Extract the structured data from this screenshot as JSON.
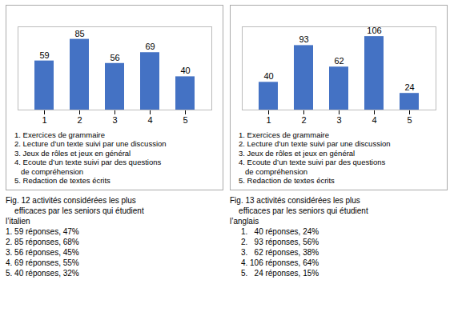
{
  "chart_data": [
    {
      "type": "bar",
      "categories": [
        "1",
        "2",
        "3",
        "4",
        "5"
      ],
      "values": [
        59,
        85,
        56,
        69,
        40
      ],
      "color": "#4472C4",
      "ylim": [
        0,
        100
      ],
      "data_labels": true,
      "tick_labels": "x",
      "annotations": [
        "1. Exercices de grammaire",
        "2. Lecture d’un texte suivi par une discussion",
        "3. Jeux de rôles et jeux en général",
        "4. Ecoute d’un texte suivi par des questions",
        "   de compréhension",
        "5. Redaction de textes écrits"
      ],
      "caption": "Fig. 12 activités considérées les plus\n    efficaces par les seniors qui étudient\nl’italien\n1. 59 réponses, 47%\n2. 85 réponses, 68%\n3. 56 réponses, 45%\n4. 69 réponses, 55%\n5. 40 réponses, 32%"
    },
    {
      "type": "bar",
      "categories": [
        "1",
        "2",
        "3",
        "4",
        "5"
      ],
      "values": [
        40,
        93,
        62,
        106,
        24
      ],
      "color": "#4472C4",
      "ylim": [
        0,
        120
      ],
      "data_labels": true,
      "tick_labels": "x",
      "annotations": [
        "1. Exercices de grammaire",
        "2. Lecture d’un texte suivi par une discussion",
        "3. Jeux de rôles et jeux en général",
        "4. Ecoute d’un texte suivi par des questions",
        "   de compréhension",
        "5. Redaction de textes écrits"
      ],
      "caption": "Fig. 13 activités considérées les plus\n    efficaces par les seniors qui étudient\nl’anglais\n     1.   40 réponses, 24%\n     2.   93 réponses, 56%\n     3.   62 réponses, 38%\n     4. 106 réponses, 64%\n     5.   24 réponses, 15%"
    }
  ]
}
